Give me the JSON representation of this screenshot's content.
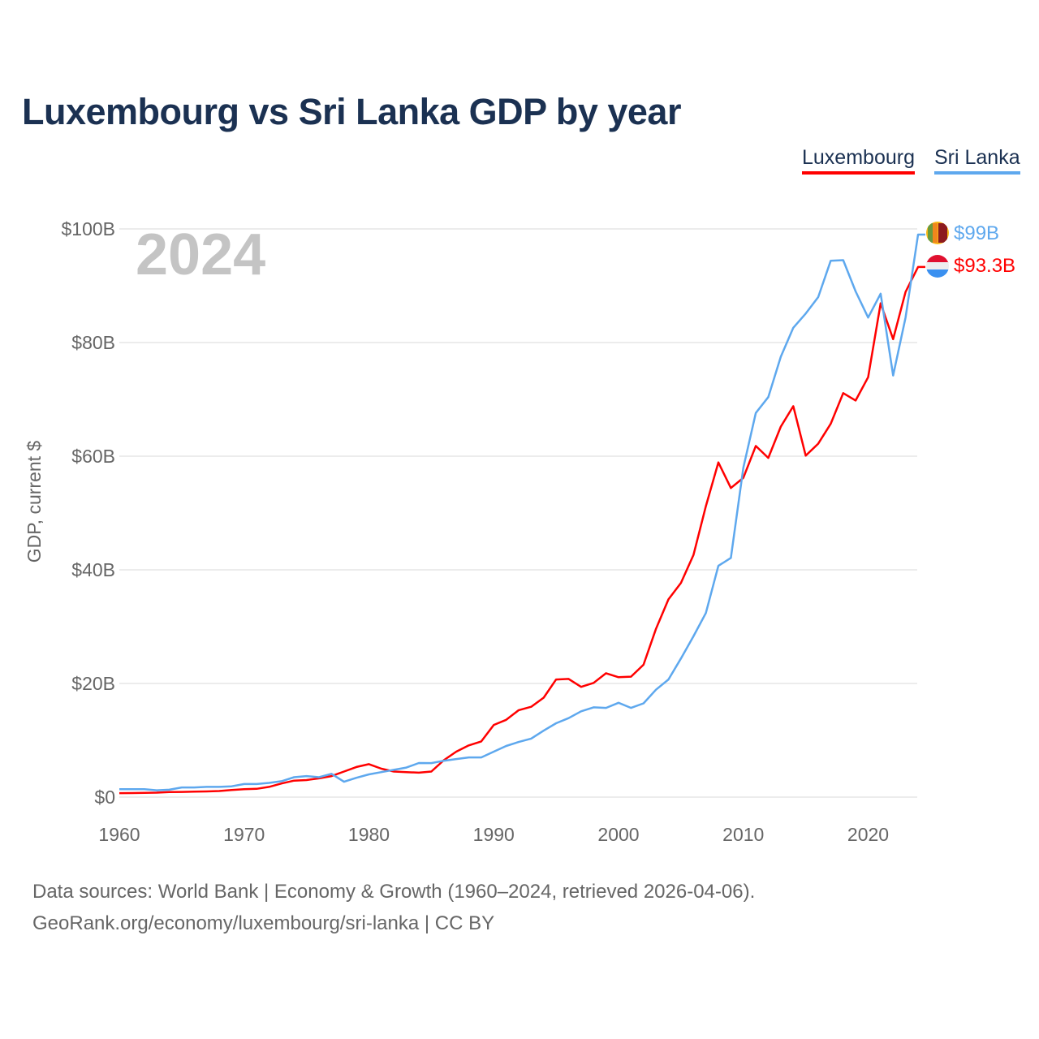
{
  "chart_data": {
    "type": "line",
    "title": "Luxembourg vs Sri Lanka GDP by year",
    "xlabel": "",
    "ylabel": "GDP, current $",
    "xlim": [
      1960,
      2024
    ],
    "ylim": [
      0,
      100
    ],
    "unit": "billions USD",
    "year_label": "2024",
    "grid": true,
    "legend_position": "top-right",
    "x_ticks": [
      "1960",
      "1970",
      "1980",
      "1990",
      "2000",
      "2010",
      "2020"
    ],
    "y_ticks": [
      {
        "v": 0,
        "label": "$0"
      },
      {
        "v": 20,
        "label": "$20B"
      },
      {
        "v": 40,
        "label": "$40B"
      },
      {
        "v": 60,
        "label": "$60B"
      },
      {
        "v": 80,
        "label": "$80B"
      },
      {
        "v": 100,
        "label": "$100B"
      }
    ],
    "x": [
      1960,
      1961,
      1962,
      1963,
      1964,
      1965,
      1966,
      1967,
      1968,
      1969,
      1970,
      1971,
      1972,
      1973,
      1974,
      1975,
      1976,
      1977,
      1978,
      1979,
      1980,
      1981,
      1982,
      1983,
      1984,
      1985,
      1986,
      1987,
      1988,
      1989,
      1990,
      1991,
      1992,
      1993,
      1994,
      1995,
      1996,
      1997,
      1998,
      1999,
      2000,
      2001,
      2002,
      2003,
      2004,
      2005,
      2006,
      2007,
      2008,
      2009,
      2010,
      2011,
      2012,
      2013,
      2014,
      2015,
      2016,
      2017,
      2018,
      2019,
      2020,
      2021,
      2022,
      2023,
      2024
    ],
    "series": [
      {
        "name": "Luxembourg",
        "color": "#ff0000",
        "end_label": "$93.3B",
        "values": [
          0.7,
          0.71,
          0.74,
          0.78,
          0.88,
          0.92,
          0.97,
          1.0,
          1.07,
          1.25,
          1.4,
          1.46,
          1.8,
          2.4,
          2.9,
          3.0,
          3.3,
          3.7,
          4.5,
          5.3,
          5.8,
          5.0,
          4.5,
          4.4,
          4.3,
          4.5,
          6.5,
          8.0,
          9.1,
          9.8,
          12.7,
          13.6,
          15.3,
          15.9,
          17.5,
          20.7,
          20.8,
          19.4,
          20.1,
          21.8,
          21.1,
          21.2,
          23.3,
          29.6,
          34.8,
          37.7,
          42.6,
          51.2,
          58.9,
          54.4,
          56.2,
          61.8,
          59.7,
          65.2,
          68.8,
          60.1,
          62.2,
          65.7,
          71.1,
          69.8,
          73.9,
          86.9,
          80.6,
          88.9,
          93.3
        ]
      },
      {
        "name": "Sri Lanka",
        "color": "#5ea8ee",
        "end_label": "$99B",
        "values": [
          1.4,
          1.4,
          1.4,
          1.2,
          1.3,
          1.7,
          1.7,
          1.8,
          1.8,
          1.9,
          2.3,
          2.3,
          2.5,
          2.8,
          3.5,
          3.7,
          3.5,
          4.1,
          2.7,
          3.4,
          4.0,
          4.4,
          4.8,
          5.2,
          6.0,
          5.98,
          6.4,
          6.7,
          6.98,
          6.99,
          8.0,
          9.0,
          9.7,
          10.3,
          11.7,
          13.0,
          13.9,
          15.1,
          15.8,
          15.7,
          16.6,
          15.7,
          16.5,
          18.9,
          20.7,
          24.4,
          28.3,
          32.4,
          40.7,
          42.1,
          58.0,
          67.6,
          70.4,
          77.5,
          82.6,
          85.1,
          88.0,
          94.4,
          94.5,
          89.0,
          84.4,
          88.6,
          74.2,
          84.4,
          99.0
        ]
      }
    ]
  },
  "footer": {
    "line1": "Data sources: World Bank | Economy & Growth (1960–2024, retrieved 2026-04-06).",
    "line2": "GeoRank.org/economy/luxembourg/sri-lanka | CC BY"
  }
}
